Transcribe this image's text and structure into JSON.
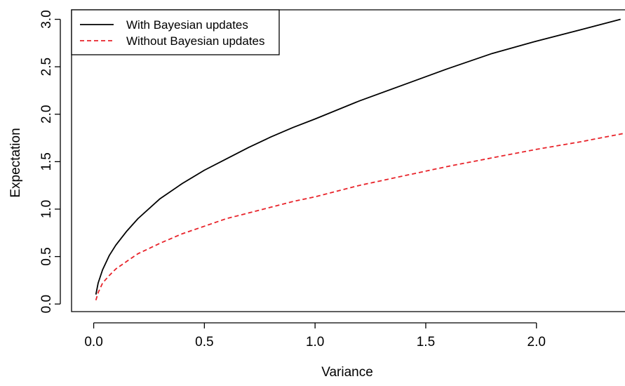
{
  "chart_data": {
    "type": "line",
    "title": "",
    "xlabel": "Variance",
    "ylabel": "Expectation",
    "xlim": [
      -0.1,
      2.4
    ],
    "ylim": [
      -0.08,
      3.1
    ],
    "x_ticks": [
      "0.0",
      "0.5",
      "1.0",
      "1.5",
      "2.0"
    ],
    "y_ticks": [
      "0.0",
      "0.5",
      "1.0",
      "1.5",
      "2.0",
      "2.5",
      "3.0"
    ],
    "grid": false,
    "legend_position": "top-left",
    "series": [
      {
        "name": "With Bayesian updates",
        "color": "#000000",
        "dash": "solid",
        "x": [
          0.01,
          0.02,
          0.04,
          0.07,
          0.1,
          0.15,
          0.2,
          0.3,
          0.4,
          0.5,
          0.6,
          0.7,
          0.8,
          0.9,
          1.0,
          1.2,
          1.4,
          1.6,
          1.8,
          2.0,
          2.2,
          2.38
        ],
        "y": [
          0.1,
          0.22,
          0.36,
          0.51,
          0.62,
          0.77,
          0.9,
          1.11,
          1.27,
          1.41,
          1.53,
          1.65,
          1.76,
          1.86,
          1.95,
          2.14,
          2.31,
          2.48,
          2.64,
          2.77,
          2.89,
          3.0
        ]
      },
      {
        "name": "Without Bayesian updates",
        "color": "#e8232a",
        "dash": "dashed",
        "x": [
          0.01,
          0.02,
          0.04,
          0.07,
          0.1,
          0.15,
          0.2,
          0.3,
          0.4,
          0.5,
          0.6,
          0.7,
          0.8,
          0.9,
          1.0,
          1.2,
          1.4,
          1.6,
          1.8,
          2.0,
          2.2,
          2.4
        ],
        "y": [
          0.04,
          0.12,
          0.22,
          0.3,
          0.37,
          0.45,
          0.53,
          0.64,
          0.74,
          0.82,
          0.9,
          0.96,
          1.02,
          1.08,
          1.13,
          1.25,
          1.35,
          1.45,
          1.54,
          1.63,
          1.71,
          1.8
        ]
      }
    ]
  }
}
